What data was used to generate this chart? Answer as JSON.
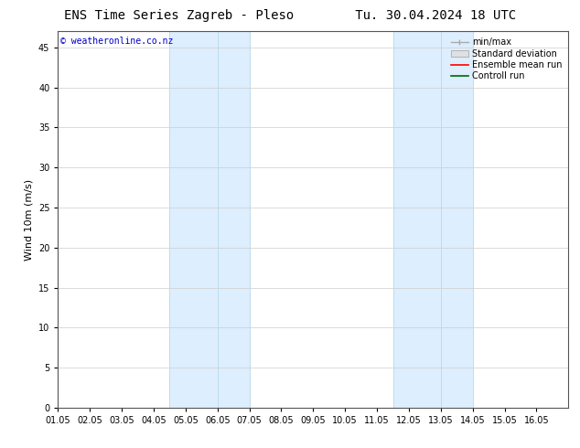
{
  "title_left": "ENS Time Series Zagreb - Pleso",
  "title_right": "Tu. 30.04.2024 18 UTC",
  "ylabel": "Wind 10m (m/s)",
  "bg_color": "#ffffff",
  "plot_bg_color": "#ffffff",
  "shaded_bands": [
    {
      "xmin": 3.5,
      "xmax": 6.0,
      "color": "#ddeeff"
    },
    {
      "xmin": 10.5,
      "xmax": 13.0,
      "color": "#ddeeff"
    }
  ],
  "vertical_lines_light": [
    {
      "x": 3.5,
      "color": "#bbddee"
    },
    {
      "x": 5.0,
      "color": "#bbddee"
    },
    {
      "x": 6.0,
      "color": "#bbddee"
    },
    {
      "x": 10.5,
      "color": "#bbddee"
    },
    {
      "x": 12.0,
      "color": "#bbddee"
    },
    {
      "x": 13.0,
      "color": "#bbddee"
    }
  ],
  "xmin": 0.0,
  "xmax": 16.0,
  "ymin": 0,
  "ymax": 47,
  "yticks": [
    0,
    5,
    10,
    15,
    20,
    25,
    30,
    35,
    40,
    45
  ],
  "xtick_labels": [
    "01.05",
    "02.05",
    "03.05",
    "04.05",
    "05.05",
    "06.05",
    "07.05",
    "08.05",
    "09.05",
    "10.05",
    "11.05",
    "12.05",
    "13.05",
    "14.05",
    "15.05",
    "16.05"
  ],
  "xtick_positions": [
    0.0,
    1.0,
    2.0,
    3.0,
    4.0,
    5.0,
    6.0,
    7.0,
    8.0,
    9.0,
    10.0,
    11.0,
    12.0,
    13.0,
    14.0,
    15.0
  ],
  "grid_color": "#cccccc",
  "watermark_text": "© weatheronline.co.nz",
  "watermark_color": "#0000cc",
  "title_fontsize": 10,
  "axis_fontsize": 8,
  "tick_fontsize": 7,
  "watermark_fontsize": 7,
  "legend_fontsize": 7
}
